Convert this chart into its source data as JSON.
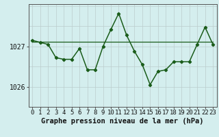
{
  "title": "Graphe pression niveau de la mer (hPa)",
  "xlabel_hours": [
    0,
    1,
    2,
    3,
    4,
    5,
    6,
    7,
    8,
    9,
    10,
    11,
    12,
    13,
    14,
    15,
    16,
    17,
    18,
    19,
    20,
    21,
    22,
    23
  ],
  "measured_x": [
    0,
    1,
    2,
    3,
    4,
    5,
    6,
    7,
    8,
    9,
    10,
    11,
    12,
    13,
    14,
    15,
    16,
    17,
    18,
    19,
    20,
    21,
    22,
    23
  ],
  "measured_y": [
    1027.15,
    1027.1,
    1027.05,
    1026.72,
    1026.68,
    1026.68,
    1026.95,
    1026.42,
    1026.42,
    1027.0,
    1027.42,
    1027.82,
    1027.28,
    1026.88,
    1026.55,
    1026.05,
    1026.38,
    1026.42,
    1026.62,
    1026.62,
    1026.62,
    1027.05,
    1027.48,
    1027.05
  ],
  "trend_x": [
    0,
    1,
    2,
    3,
    4,
    5,
    6,
    7,
    8,
    9,
    10,
    11,
    12,
    13,
    14,
    15,
    16,
    17,
    18,
    19,
    20,
    21,
    22,
    23
  ],
  "trend_y": [
    1027.12,
    1027.12,
    1027.12,
    1027.12,
    1027.12,
    1027.12,
    1027.12,
    1027.12,
    1027.12,
    1027.12,
    1027.12,
    1027.12,
    1027.12,
    1027.12,
    1027.12,
    1027.12,
    1027.12,
    1027.12,
    1027.12,
    1027.12,
    1027.12,
    1027.12,
    1027.12,
    1027.12
  ],
  "line_color": "#1a5c1a",
  "bg_color": "#d4eeee",
  "grid_minor_color": "#bbcccc",
  "grid_major_color": "#99bbbb",
  "ylim_min": 1025.5,
  "ylim_max": 1028.05,
  "yticks": [
    1026,
    1027
  ],
  "title_fontsize": 7.5,
  "tick_fontsize": 6.5
}
